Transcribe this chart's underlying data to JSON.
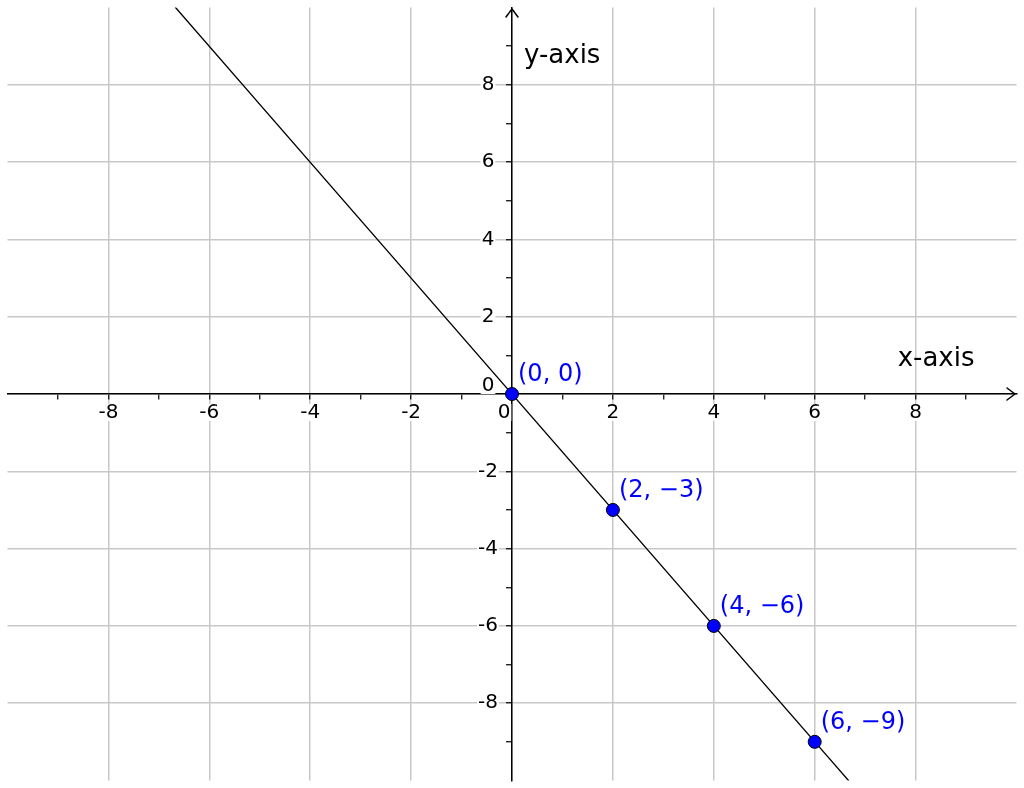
{
  "chart_data": {
    "type": "scatter",
    "xlabel": "x-axis",
    "ylabel": "y-axis",
    "xlim": [
      -10,
      10
    ],
    "ylim": [
      -10,
      10
    ],
    "xticks": [
      {
        "value": -9,
        "label": null
      },
      -8,
      {
        "value": -7,
        "label": null
      },
      -6,
      {
        "value": -5,
        "label": null
      },
      -4,
      {
        "value": -3,
        "label": null
      },
      -2,
      {
        "value": -1,
        "label": null
      },
      0,
      {
        "value": 1,
        "label": null
      },
      2,
      {
        "value": 3,
        "label": null
      },
      4,
      {
        "value": 5,
        "label": null
      },
      6,
      {
        "value": 7,
        "label": null
      },
      8,
      {
        "value": 9,
        "label": null
      }
    ],
    "yticks": [
      {
        "value": -9,
        "label": null
      },
      -8,
      {
        "value": -7,
        "label": null
      },
      -6,
      {
        "value": -5,
        "label": null
      },
      -4,
      {
        "value": -3,
        "label": null
      },
      -2,
      {
        "value": -1,
        "label": null
      },
      0,
      {
        "value": 1,
        "label": null
      },
      2,
      {
        "value": 3,
        "label": null
      },
      4,
      {
        "value": 5,
        "label": null
      },
      6,
      {
        "value": 7,
        "label": null
      },
      8,
      {
        "value": 9,
        "label": null
      }
    ],
    "grid": true,
    "series": [
      {
        "type": "line",
        "color": "#000000",
        "x": [
          -6.67,
          6.67
        ],
        "values": [
          10,
          -10
        ],
        "marker": "none",
        "line_style": "solid"
      },
      {
        "type": "scatter",
        "color": "#0000ff",
        "x": [
          0,
          2,
          4,
          6
        ],
        "values": [
          0,
          -3,
          -6,
          -9
        ],
        "marker": "circle",
        "value_labels": [
          "(0, 0)",
          "(2, −3)",
          "(4, −6)",
          "(6, −9)"
        ]
      }
    ]
  }
}
